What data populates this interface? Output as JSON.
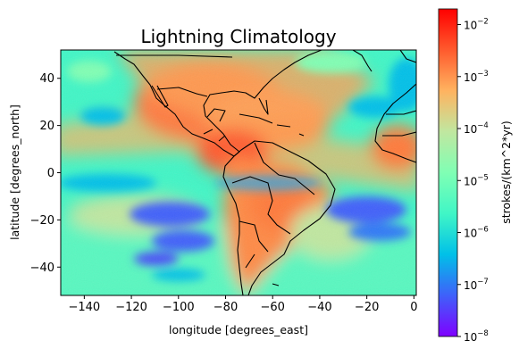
{
  "chart_data": {
    "type": "heatmap",
    "title": "Lightning Climatology",
    "xlabel": "longitude [degrees_east]",
    "ylabel": "latitude [degrees_north]",
    "xlim": [
      -150,
      1
    ],
    "ylim": [
      -52,
      52
    ],
    "xticks": [
      {
        "value": -140,
        "label": "−140"
      },
      {
        "value": -120,
        "label": "−120"
      },
      {
        "value": -100,
        "label": "−100"
      },
      {
        "value": -80,
        "label": "−80"
      },
      {
        "value": -60,
        "label": "−60"
      },
      {
        "value": -40,
        "label": "−40"
      },
      {
        "value": -20,
        "label": "−20"
      },
      {
        "value": 0,
        "label": "0"
      }
    ],
    "yticks": [
      {
        "value": 40,
        "label": "40"
      },
      {
        "value": 20,
        "label": "20"
      },
      {
        "value": 0,
        "label": "0"
      },
      {
        "value": -20,
        "label": "−20"
      },
      {
        "value": -40,
        "label": "−40"
      }
    ],
    "colorbar": {
      "label": "strokes/(km^2*yr)",
      "scale": "log",
      "range": [
        1e-08,
        0.02
      ],
      "ticks": [
        {
          "value": 1e-08,
          "base": "10",
          "exp": "−8"
        },
        {
          "value": 1e-07,
          "base": "10",
          "exp": "−7"
        },
        {
          "value": 1e-06,
          "base": "10",
          "exp": "−6"
        },
        {
          "value": 1e-05,
          "base": "10",
          "exp": "−5"
        },
        {
          "value": 0.0001,
          "base": "10",
          "exp": "−4"
        },
        {
          "value": 0.001,
          "base": "10",
          "exp": "−3"
        },
        {
          "value": 0.01,
          "base": "10",
          "exp": "−2"
        }
      ],
      "colormap": [
        "#7f00ff",
        "#3f60fa",
        "#00c0e8",
        "#40f6c6",
        "#80ffb4",
        "#c0e7a0",
        "#ffb360",
        "#ff5a2d",
        "#ff0000"
      ]
    },
    "coastline_color": "#000000"
  }
}
